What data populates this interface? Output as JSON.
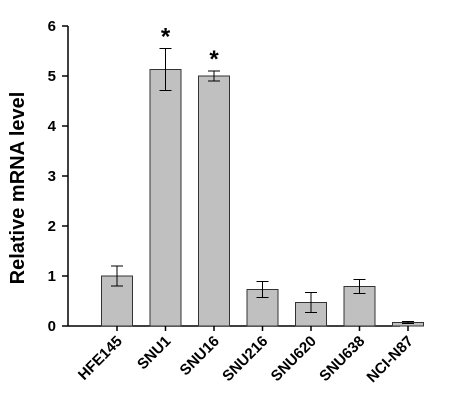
{
  "chart_data": {
    "type": "bar",
    "ylabel": "Relative mRNA level",
    "xlabel": "",
    "ylim": [
      0,
      6
    ],
    "yticks": [
      "0",
      "1",
      "2",
      "3",
      "4",
      "5",
      "6"
    ],
    "categories": [
      "HFE145",
      "SNU1",
      "SNU16",
      "SNU216",
      "SNU620",
      "SNU638",
      "NCI-N87"
    ],
    "values": [
      1.0,
      5.13,
      5.0,
      0.73,
      0.47,
      0.79,
      0.07
    ],
    "errors": [
      0.2,
      0.42,
      0.1,
      0.16,
      0.2,
      0.14,
      0.02
    ],
    "significance": [
      "",
      "*",
      "*",
      "",
      "",
      "",
      ""
    ],
    "bar_color": "#c0c0c0",
    "bar_edge_color": "#333333",
    "grid": false,
    "legend": "none"
  }
}
